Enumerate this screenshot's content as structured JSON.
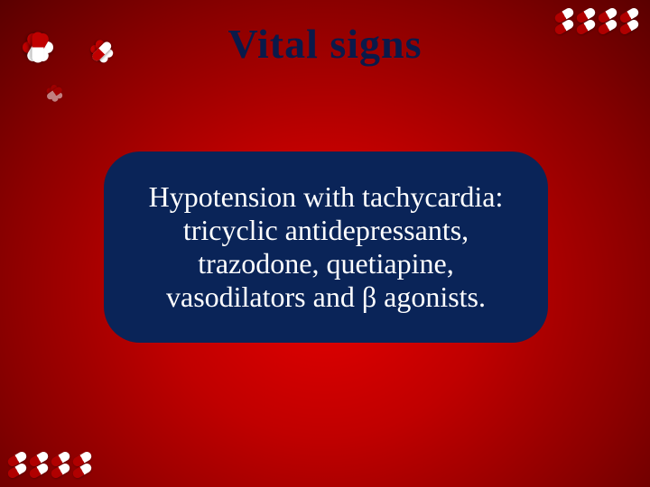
{
  "slide": {
    "title": "Vital signs",
    "content": "Hypotension with tachycardia: tricyclic antidepressants, trazodone, quetiapine, vasodilators and β agonists."
  },
  "styling": {
    "background_gradient": [
      "#e40000",
      "#c00000",
      "#8b0000",
      "#5a0000"
    ],
    "title_color": "#0a1a4a",
    "title_fontsize": 46,
    "content_box_bg": "#0a2458",
    "content_box_radius": 40,
    "content_text_color": "#ffffff",
    "content_fontsize": 32,
    "pill_colors": {
      "red": "#b00000",
      "white": "#ffffff"
    },
    "pill_cluster_rows": 2,
    "pill_cluster_cols": 4,
    "decorations": {
      "top_left_stars": 3,
      "pill_clusters": [
        "top-right",
        "bottom-left"
      ]
    }
  }
}
